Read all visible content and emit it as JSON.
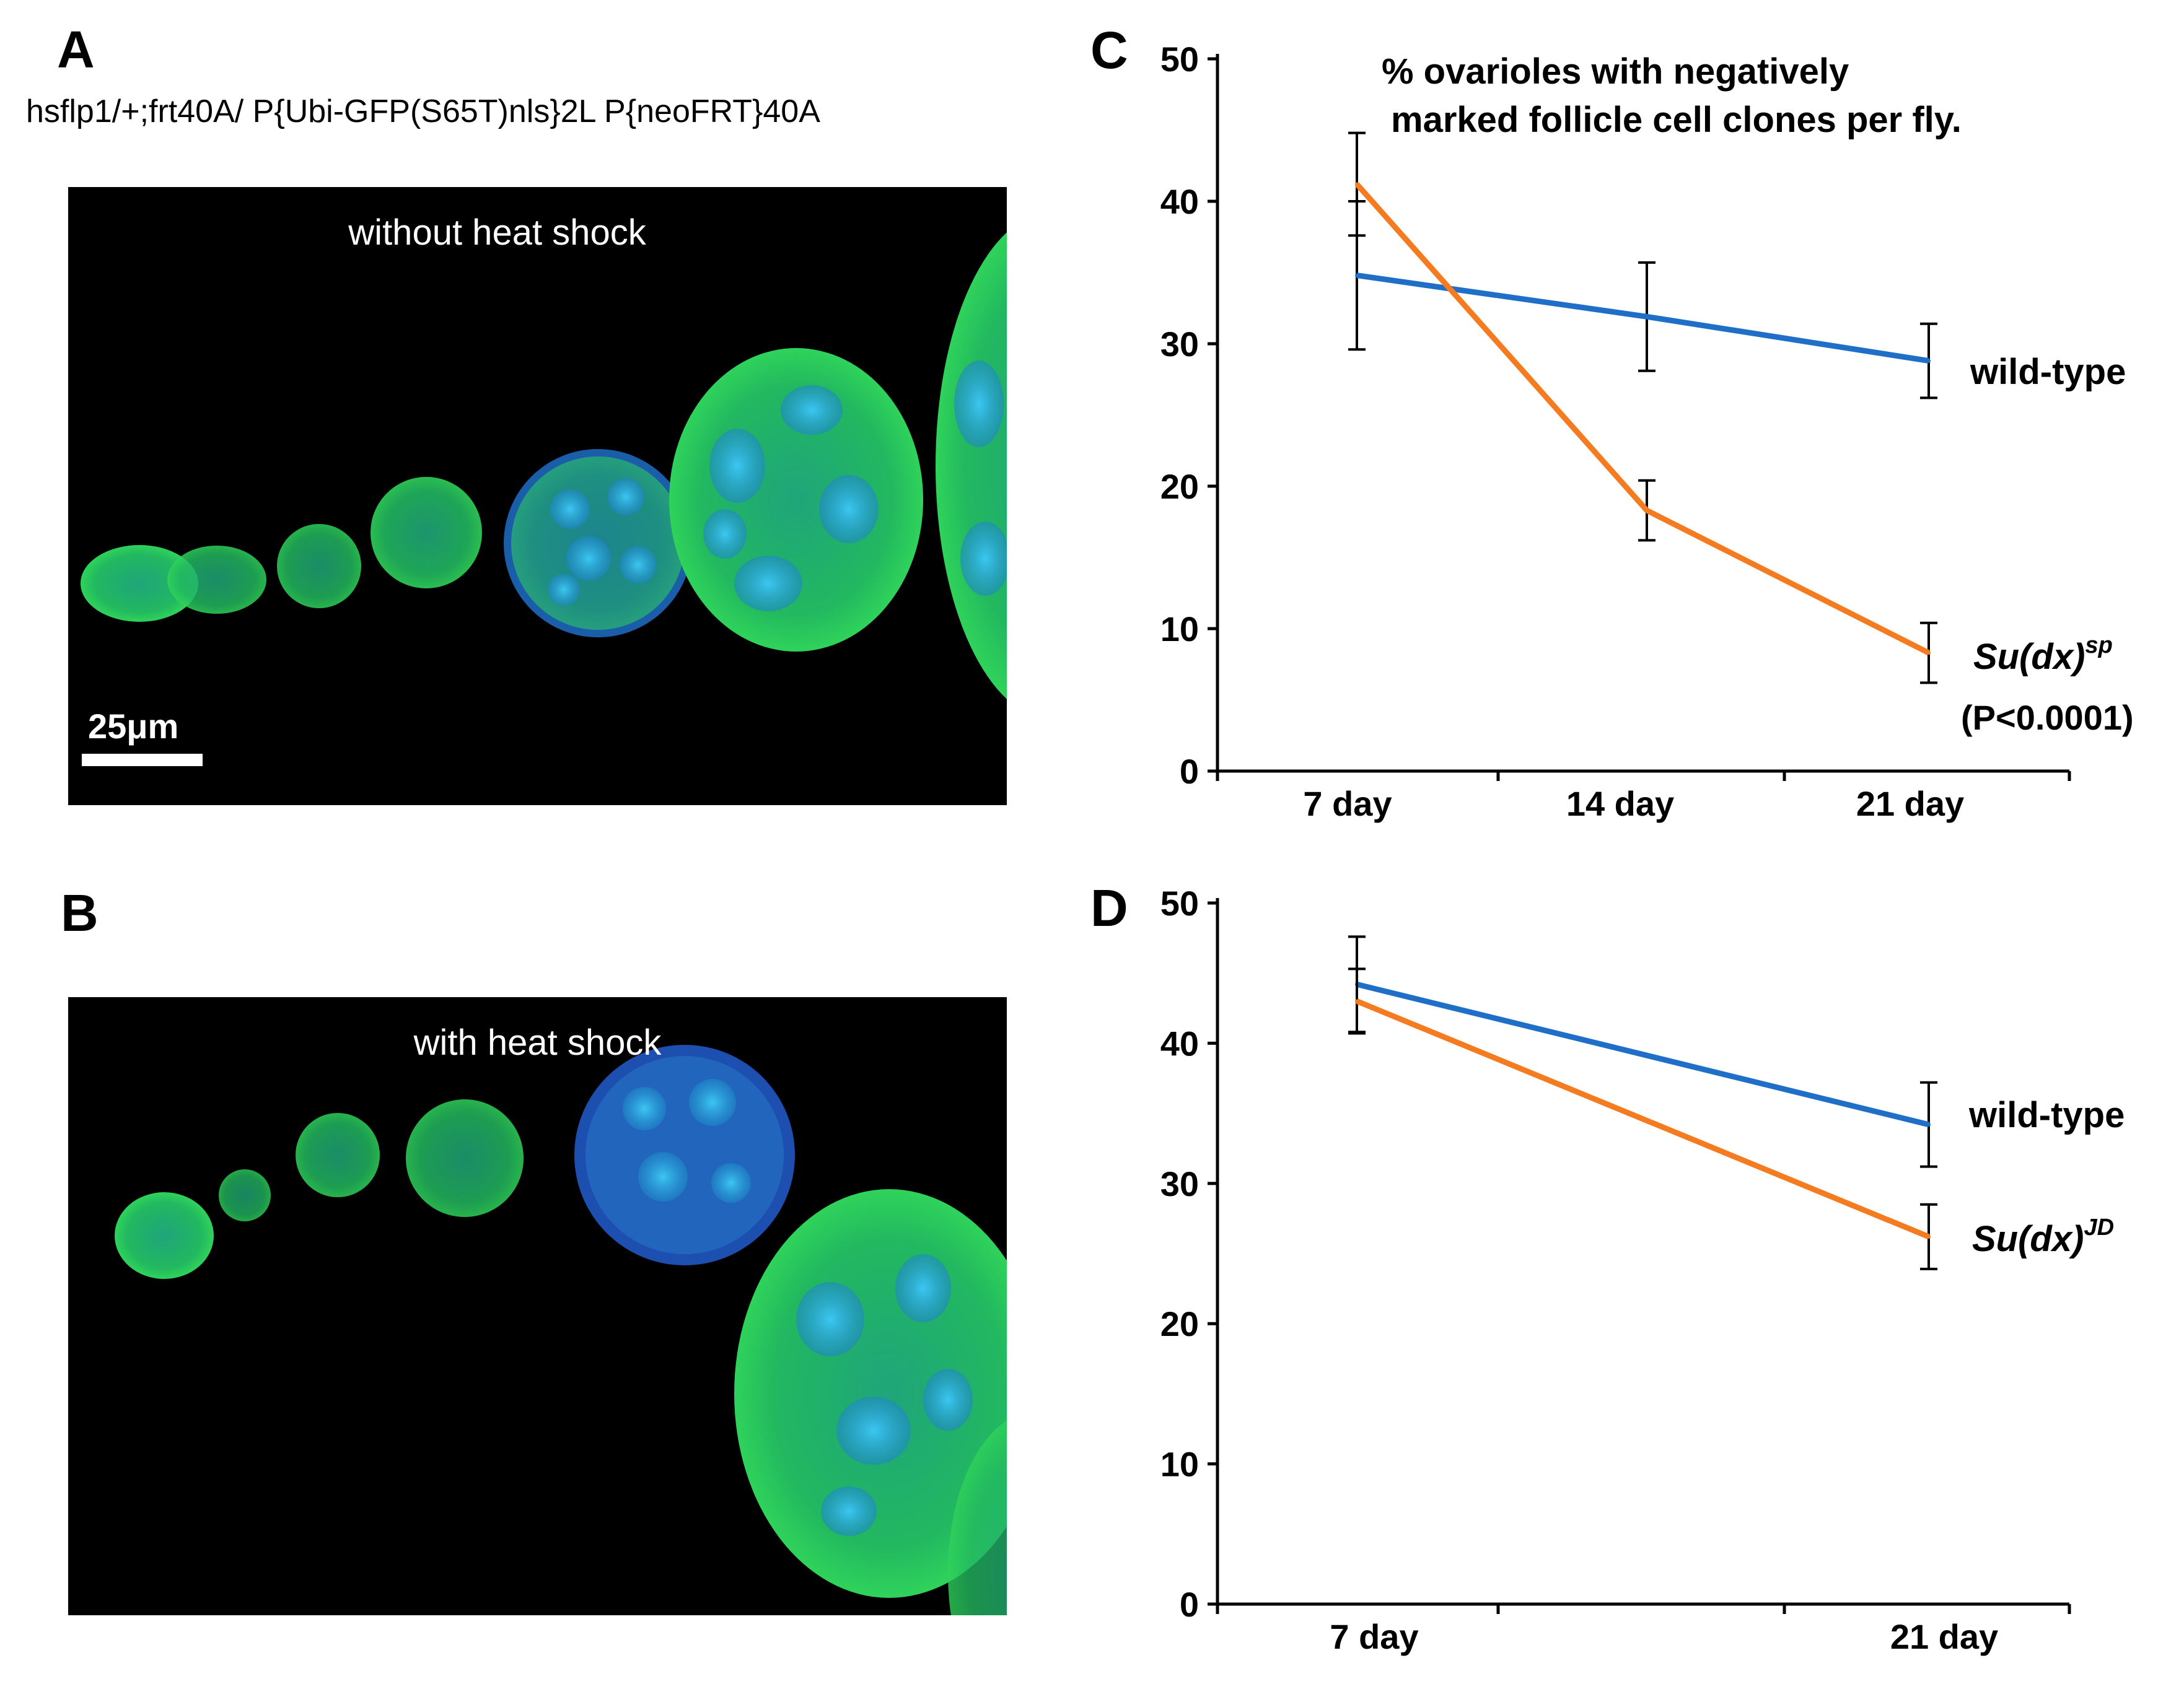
{
  "panel_a": {
    "letter": "A",
    "genotype": "hsflp1/+;frt40A/ P{Ubi-GFP(S65T)nls}2L P{neoFRT}40A",
    "image_title": "without heat shock",
    "scale_label": "25μm"
  },
  "panel_b": {
    "letter": "B",
    "image_title": "with heat shock"
  },
  "colors": {
    "wild_type": "#1f6fc9",
    "mutant": "#f47b20",
    "micro_green": "#2fd35a",
    "micro_blue": "#2aa6e8"
  },
  "chart_data": [
    {
      "panel": "C",
      "type": "line",
      "title_lines": [
        "% ovarioles with negatively",
        "marked follicle cell clones per fly."
      ],
      "categories": [
        "7 day",
        "14 day",
        "21 day"
      ],
      "ylim": [
        0,
        50
      ],
      "yticks": [
        0,
        10,
        20,
        30,
        40,
        50
      ],
      "series": [
        {
          "name": "wild-type",
          "label": "wild-type",
          "color": "#1f6fc9",
          "values": [
            34.8,
            31.9,
            28.8
          ],
          "errors": [
            5.2,
            3.8,
            2.6
          ]
        },
        {
          "name": "Su(dx)sp",
          "label": "Su(dx)",
          "label_sup": "sp",
          "note": "(P<0.0001)",
          "color": "#f47b20",
          "values": [
            41.2,
            18.3,
            8.3
          ],
          "errors": [
            3.6,
            2.1,
            2.1
          ]
        }
      ]
    },
    {
      "panel": "D",
      "type": "line",
      "categories": [
        "7 day",
        "21 day"
      ],
      "ylim": [
        0,
        50
      ],
      "yticks": [
        0,
        10,
        20,
        30,
        40,
        50
      ],
      "series": [
        {
          "name": "wild-type",
          "label": "wild-type",
          "color": "#1f6fc9",
          "values": [
            44.2,
            34.2
          ],
          "errors": [
            3.4,
            3.0
          ]
        },
        {
          "name": "Su(dx)JD",
          "label": "Su(dx)",
          "label_sup": "JD",
          "color": "#f47b20",
          "values": [
            43.0,
            26.2
          ],
          "errors": [
            2.3,
            2.3
          ]
        }
      ]
    }
  ]
}
